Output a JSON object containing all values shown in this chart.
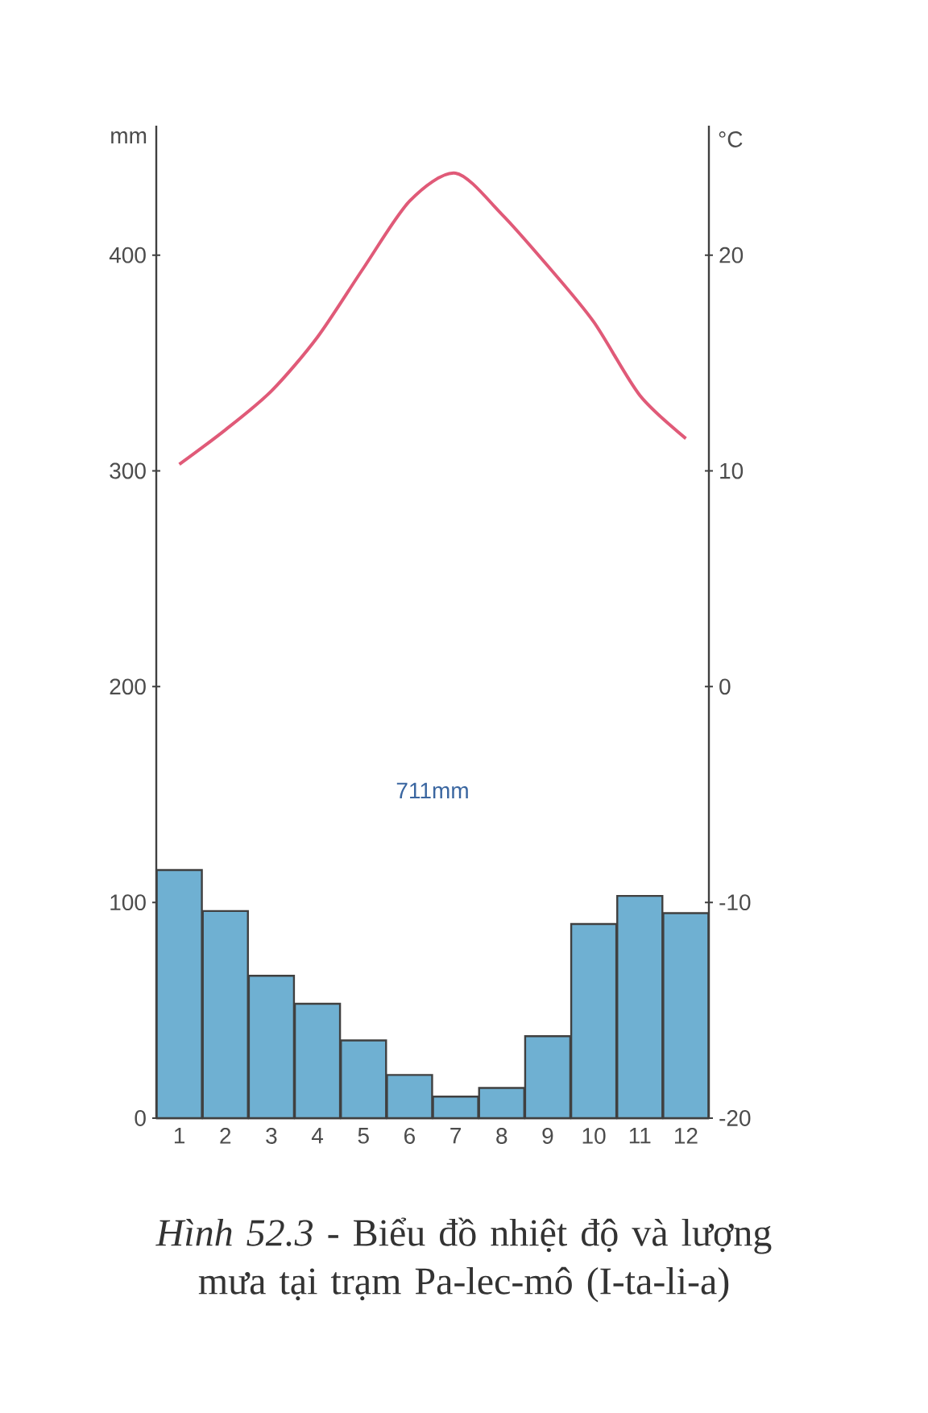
{
  "chart_data": {
    "type": "bar",
    "title": "*Hình 52.3* - Biểu đồ nhiệt độ và lượng mưa tại trạm Pa-lec-mô (I-ta-li-a)",
    "categories": [
      "1",
      "2",
      "3",
      "4",
      "5",
      "6",
      "7",
      "8",
      "9",
      "10",
      "11",
      "12"
    ],
    "series": [
      {
        "color": "#6fb0d2",
        "values": [
          115,
          96,
          66,
          53,
          36,
          20,
          10,
          14,
          38,
          90,
          103,
          95
        ]
      },
      {
        "type": "line",
        "axis": "y2",
        "color": "#e05a78",
        "values": [
          10.3,
          11.9,
          13.7,
          16.2,
          19.4,
          22.5,
          23.8,
          21.9,
          19.5,
          16.9,
          13.5,
          11.5
        ]
      }
    ],
    "ylabel": "mm",
    "y2label": "°C",
    "ylim": [
      0,
      460
    ],
    "yticks": [
      0,
      100,
      200,
      300,
      400
    ],
    "y2lim": [
      -20,
      26
    ],
    "y2ticks": [
      -20,
      -10,
      0,
      10,
      20
    ],
    "annotations": [
      "711mm"
    ]
  }
}
